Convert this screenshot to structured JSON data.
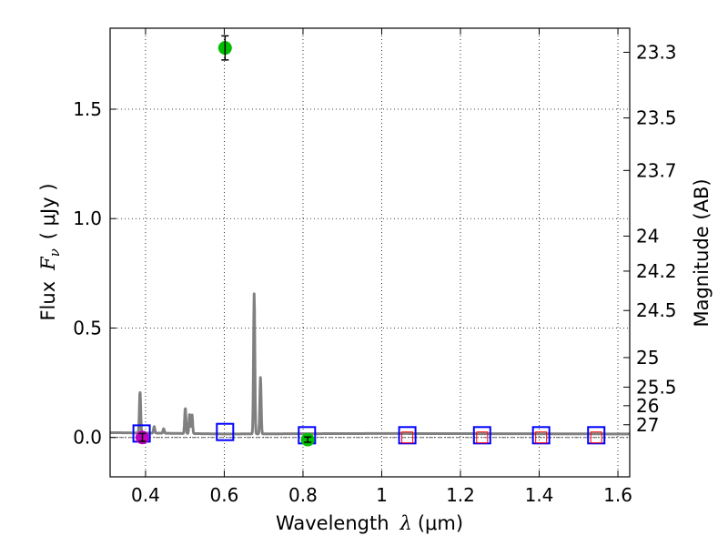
{
  "chart_data": {
    "type": "scatter",
    "title": "",
    "xlabel_text": "Wavelength",
    "xlabel_symbol": "λ",
    "xlabel_unit": "(μm)",
    "ylabel_text": "Flux",
    "ylabel_symbol": "F",
    "ylabel_subscript": "ν",
    "ylabel_unit": "( μJy )",
    "y2label": "Magnitude (AB)",
    "xlim": [
      0.31,
      1.63
    ],
    "ylim": [
      -0.18,
      1.87
    ],
    "grid": true,
    "x_ticks": [
      0.4,
      0.6,
      0.8,
      1.0,
      1.2,
      1.4,
      1.6
    ],
    "x_tick_labels": [
      "0.4",
      "0.6",
      "0.8",
      "1",
      "1.2",
      "1.4",
      "1.6"
    ],
    "y_ticks": [
      0.0,
      0.5,
      1.0,
      1.5
    ],
    "y_tick_labels": [
      "0.0",
      "0.5",
      "1.0",
      "1.5"
    ],
    "y2_ticks": [
      {
        "label": "23.3",
        "flux": 1.76
      },
      {
        "label": "23.5",
        "flux": 1.46
      },
      {
        "label": "23.7",
        "flux": 1.22
      },
      {
        "label": "24",
        "flux": 0.92
      },
      {
        "label": "24.2",
        "flux": 0.76
      },
      {
        "label": "24.5",
        "flux": 0.58
      },
      {
        "label": "25",
        "flux": 0.365
      },
      {
        "label": "25.5",
        "flux": 0.23
      },
      {
        "label": "26",
        "flux": 0.145
      },
      {
        "label": "27",
        "flux": 0.058
      }
    ],
    "model_spectrum": {
      "color": "#808080",
      "baseline": [
        [
          0.31,
          0.022
        ],
        [
          0.6,
          0.016
        ],
        [
          1.0,
          0.018
        ],
        [
          1.63,
          0.016
        ]
      ],
      "emission_lines": [
        {
          "x": 0.386,
          "peak": 0.21
        },
        {
          "x": 0.422,
          "peak": 0.05
        },
        {
          "x": 0.446,
          "peak": 0.04
        },
        {
          "x": 0.501,
          "peak": 0.135
        },
        {
          "x": 0.512,
          "peak": 0.105
        },
        {
          "x": 0.518,
          "peak": 0.105
        },
        {
          "x": 0.676,
          "peak": 0.66
        },
        {
          "x": 0.692,
          "peak": 0.275
        }
      ]
    },
    "series": [
      {
        "name": "model-bandpass-flux",
        "marker": "square",
        "color": "#0000ff",
        "points": [
          [
            0.39,
            0.018
          ],
          [
            0.602,
            0.025
          ],
          [
            0.81,
            0.01
          ],
          [
            1.065,
            0.01
          ],
          [
            1.255,
            0.01
          ],
          [
            1.405,
            0.01
          ],
          [
            1.545,
            0.01
          ]
        ]
      },
      {
        "name": "upper-limits",
        "marker": "small-square",
        "color": "#ff0000",
        "points": [
          [
            1.065,
            0.0
          ],
          [
            1.255,
            0.0
          ],
          [
            1.405,
            0.0
          ],
          [
            1.545,
            0.0
          ]
        ]
      },
      {
        "name": "detection-magenta",
        "marker": "circle",
        "color": "#bf00bf",
        "points": [
          {
            "x": 0.392,
            "y": 0.0,
            "err": 0.018
          }
        ]
      },
      {
        "name": "detection-green",
        "marker": "circle",
        "color": "#00bf00",
        "points": [
          {
            "x": 0.602,
            "y": 1.78,
            "err": 0.055
          },
          {
            "x": 0.812,
            "y": -0.01,
            "err": 0.012
          }
        ]
      }
    ],
    "zero_line": {
      "y": 0.0,
      "style": "dashdot",
      "color": "#666666"
    }
  }
}
